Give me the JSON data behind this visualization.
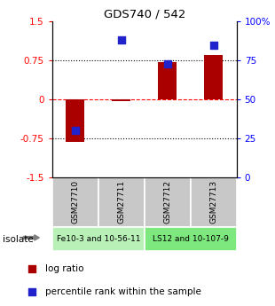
{
  "title": "GDS740 / 542",
  "samples": [
    "GSM27710",
    "GSM27711",
    "GSM27712",
    "GSM27713"
  ],
  "log_ratios": [
    -0.82,
    -0.03,
    0.72,
    0.85
  ],
  "percentile_ranks": [
    30,
    88,
    73,
    85
  ],
  "groups": [
    {
      "label": "Fe10-3 and 10-56-11",
      "samples": [
        0,
        1
      ],
      "color": "#b8f0b8"
    },
    {
      "label": "LS12 and 10-107-9",
      "samples": [
        2,
        3
      ],
      "color": "#7de87d"
    }
  ],
  "ylim_left": [
    -1.5,
    1.5
  ],
  "ylim_right": [
    0,
    100
  ],
  "left_ticks": [
    -1.5,
    -0.75,
    0,
    0.75,
    1.5
  ],
  "right_ticks": [
    0,
    25,
    50,
    75,
    100
  ],
  "left_tick_labels": [
    "-1.5",
    "-0.75",
    "0",
    "0.75",
    "1.5"
  ],
  "right_tick_labels": [
    "0",
    "25",
    "50",
    "75",
    "100%"
  ],
  "bar_color": "#aa0000",
  "dot_color": "#2222cc",
  "bar_width": 0.4,
  "dot_size": 40,
  "legend_log_label": "log ratio",
  "legend_pct_label": "percentile rank within the sample",
  "isolate_label": "isolate",
  "group_box_color": "#c8c8c8",
  "background_color": "#ffffff"
}
